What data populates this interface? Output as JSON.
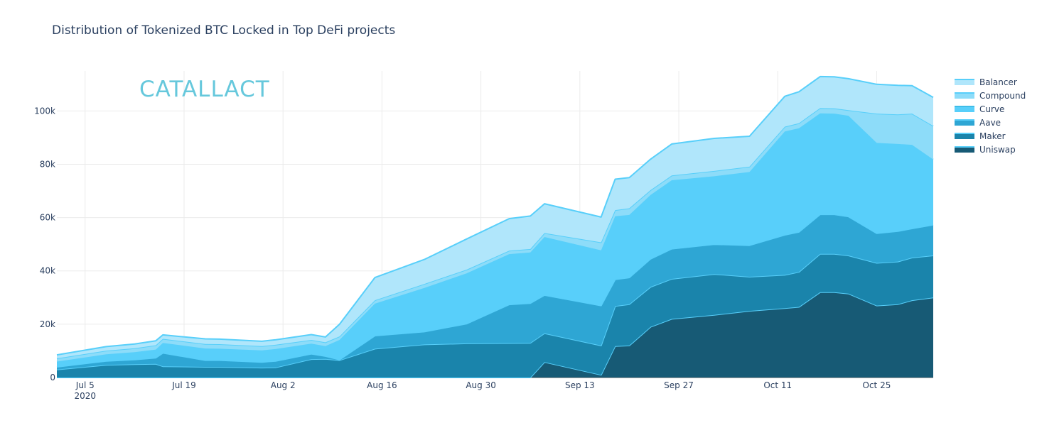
{
  "chart_data": {
    "type": "area",
    "stacked": true,
    "title": "Distribution of Tokenized BTC Locked in Top DeFi projects",
    "xlabel": "",
    "ylabel": "",
    "x_tick_labels": [
      "Jul 5",
      "Jul 19",
      "Aug 2",
      "Aug 16",
      "Aug 30",
      "Sep 13",
      "Sep 27",
      "Oct 11",
      "Oct 25"
    ],
    "x_year_label": "2020",
    "x_range": [
      "2020-07-01",
      "2020-11-02"
    ],
    "y_tick_labels": [
      "0",
      "20k",
      "40k",
      "60k",
      "80k",
      "100k"
    ],
    "ylim": [
      0,
      115000
    ],
    "grid": true,
    "legend_position": "top-right",
    "x_dates": [
      "2020-07-01",
      "2020-07-08",
      "2020-07-12",
      "2020-07-15",
      "2020-07-16",
      "2020-07-22",
      "2020-07-24",
      "2020-07-30",
      "2020-08-01",
      "2020-08-06",
      "2020-08-08",
      "2020-08-10",
      "2020-08-15",
      "2020-08-22",
      "2020-08-28",
      "2020-09-03",
      "2020-09-06",
      "2020-09-08",
      "2020-09-16",
      "2020-09-18",
      "2020-09-20",
      "2020-09-23",
      "2020-09-26",
      "2020-10-02",
      "2020-10-07",
      "2020-10-12",
      "2020-10-14",
      "2020-10-17",
      "2020-10-19",
      "2020-10-21",
      "2020-10-25",
      "2020-10-28",
      "2020-10-30",
      "2020-11-02"
    ],
    "series": [
      {
        "name": "Uniswap",
        "color": "#175a75",
        "values": [
          0,
          0,
          0,
          0,
          0,
          0,
          0,
          0,
          0,
          0,
          0,
          0,
          0,
          0,
          0,
          0,
          0,
          5800,
          1000,
          11800,
          12000,
          19000,
          22000,
          23500,
          25000,
          26000,
          26500,
          32000,
          32000,
          31500,
          27000,
          27500,
          29000,
          30000
        ]
      },
      {
        "name": "Maker",
        "color": "#1a84ab",
        "values": [
          3000,
          4700,
          5000,
          5100,
          4200,
          4000,
          4000,
          3700,
          3800,
          6900,
          7000,
          6500,
          10800,
          12400,
          12800,
          12900,
          13000,
          10800,
          11000,
          15000,
          15500,
          15000,
          15000,
          15300,
          12800,
          12500,
          13100,
          14400,
          14400,
          14300,
          16000,
          16000,
          16000,
          15800
        ]
      },
      {
        "name": "Aave",
        "color": "#2ea6d4",
        "values": [
          1000,
          1500,
          1700,
          2300,
          5000,
          2500,
          2500,
          2100,
          2400,
          2000,
          1000,
          200,
          4900,
          4800,
          7400,
          14500,
          14900,
          14300,
          15000,
          10000,
          10000,
          10500,
          11300,
          11200,
          11800,
          15000,
          15000,
          14800,
          14800,
          14600,
          11100,
          11400,
          10900,
          11500
        ]
      },
      {
        "name": "Curve",
        "color": "#58cffa",
        "values": [
          2000,
          2500,
          2800,
          3100,
          3800,
          4400,
          4300,
          4400,
          4500,
          3800,
          3800,
          7400,
          12000,
          16400,
          18900,
          18900,
          19000,
          21800,
          20700,
          23700,
          23500,
          24000,
          25700,
          25500,
          27500,
          38800,
          38900,
          37900,
          37800,
          37800,
          33900,
          32700,
          31400,
          24500
        ]
      },
      {
        "name": "Compound",
        "color": "#8ddcf9",
        "values": [
          1200,
          1400,
          1500,
          1600,
          1500,
          1700,
          1700,
          1600,
          1600,
          1400,
          1400,
          1300,
          1300,
          1500,
          1400,
          1300,
          1300,
          1500,
          3000,
          2300,
          2500,
          1800,
          1800,
          2000,
          2000,
          1800,
          1900,
          2000,
          2000,
          2100,
          11000,
          11100,
          11700,
          12600
        ]
      },
      {
        "name": "Balancer",
        "color": "#b0e6fb",
        "values": [
          1300,
          1500,
          1600,
          1700,
          1500,
          1900,
          1900,
          1800,
          1900,
          2000,
          2000,
          4600,
          8500,
          9200,
          11500,
          12000,
          12400,
          11000,
          9500,
          11600,
          11500,
          11600,
          11800,
          12200,
          11400,
          11400,
          11800,
          11800,
          11800,
          11800,
          11000,
          10900,
          10500,
          10700
        ]
      }
    ]
  },
  "legend": {
    "items": [
      {
        "label": "Balancer",
        "color": "#b0e6fb",
        "line": "#58cffa"
      },
      {
        "label": "Compound",
        "color": "#8ddcf9",
        "line": "#58cffa"
      },
      {
        "label": "Curve",
        "color": "#58cffa",
        "line": "#3fbde8"
      },
      {
        "label": "Aave",
        "color": "#2ea6d4",
        "line": "#58cffa"
      },
      {
        "label": "Maker",
        "color": "#1a84ab",
        "line": "#58cffa"
      },
      {
        "label": "Uniswap",
        "color": "#175a75",
        "line": "#58cffa"
      }
    ]
  },
  "logo": {
    "text": "CATALLACT",
    "color": "#66c8dc"
  },
  "colors": {
    "grid": "#ebebeb",
    "outline": "#58cffa",
    "text": "#2a3f5f"
  }
}
